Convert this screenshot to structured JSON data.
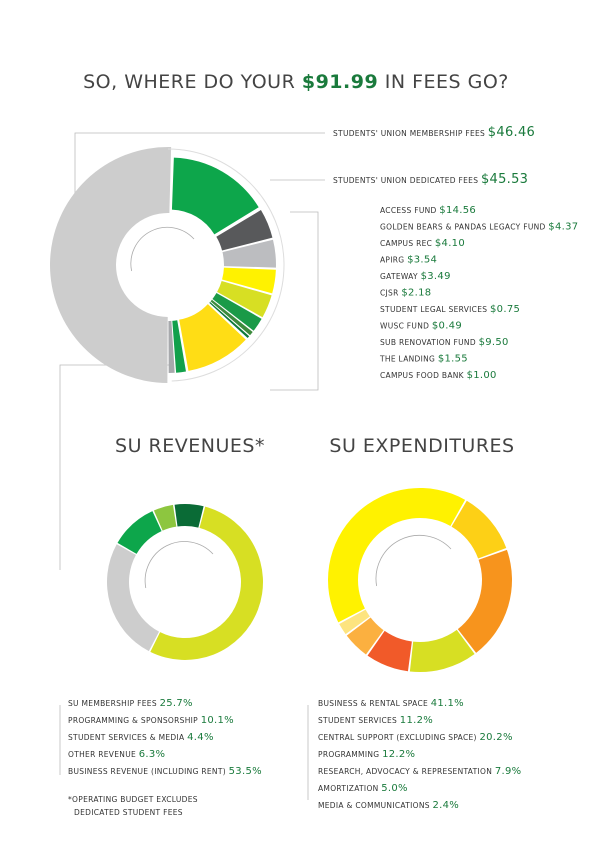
{
  "header": {
    "prefix": "SO, WHERE DO YOUR",
    "amount": "$91.99",
    "suffix": "IN FEES GO?"
  },
  "chart_data": [
    {
      "type": "donut",
      "categories": [
        "STUDENTS' UNION MEMBERSHIP FEES",
        "ACCESS FUND",
        "GOLDEN BEARS & PANDAS LEGACY FUND",
        "CAMPUS REC",
        "APIRG",
        "GATEWAY",
        "CJSR",
        "STUDENT LEGAL SERVICES",
        "WUSC FUND",
        "SUB RENOVATION FUND",
        "THE LANDING",
        "CAMPUS FOOD BANK"
      ],
      "values": [
        46.46,
        14.56,
        4.37,
        4.1,
        3.54,
        3.49,
        2.18,
        0.75,
        0.49,
        9.5,
        1.55,
        1.0
      ],
      "value_labels": [
        "$46.46",
        "$14.56",
        "$4.37",
        "$4.10",
        "$3.54",
        "$3.49",
        "$2.18",
        "$0.75",
        "$0.49",
        "$9.50",
        "$1.55",
        "$1.00"
      ],
      "colors": [
        "#cdcdcd",
        "#0da64b",
        "#58595b",
        "#bcbdc0",
        "#fff200",
        "#d7df23",
        "#1a9a48",
        "#3d8b3d",
        "#0f7a3a",
        "#ffdd15",
        "#12a04b",
        "#a7a9ac"
      ],
      "group": {
        "name": "STUDENTS' UNION DEDICATED FEES",
        "value": 45.53,
        "value_label": "$45.53"
      }
    },
    {
      "type": "donut",
      "title": "SU REVENUES*",
      "categories": [
        "SU MEMBERSHIP FEES",
        "PROGRAMMING & SPONSORSHIP",
        "STUDENT SERVICES & MEDIA",
        "OTHER REVENUE",
        "BUSINESS REVENUE (INCLUDING RENT)"
      ],
      "values": [
        25.7,
        10.1,
        4.4,
        6.3,
        53.5
      ],
      "value_labels": [
        "25.7%",
        "10.1%",
        "4.4%",
        "6.3%",
        "53.5%"
      ],
      "colors": [
        "#cdcdcd",
        "#0da64b",
        "#8dc63f",
        "#0a6b36",
        "#d7df23"
      ],
      "note": "*OPERATING BUDGET EXCLUDES DEDICATED STUDENT FEES"
    },
    {
      "type": "donut",
      "title": "SU EXPENDITURES",
      "categories": [
        "BUSINESS & RENTAL SPACE",
        "STUDENT SERVICES",
        "CENTRAL SUPPORT (EXCLUDING SPACE)",
        "PROGRAMMING",
        "RESEARCH, ADVOCACY & REPRESENTATION",
        "AMORTIZATION",
        "MEDIA & COMMUNICATIONS"
      ],
      "values": [
        41.1,
        11.2,
        20.2,
        12.2,
        7.9,
        5.0,
        2.4
      ],
      "value_labels": [
        "41.1%",
        "11.2%",
        "20.2%",
        "12.2%",
        "7.9%",
        "5.0%",
        "2.4%"
      ],
      "colors": [
        "#fff200",
        "#fdd016",
        "#f7941d",
        "#d7df23",
        "#f15a29",
        "#fbb040",
        "#fde47f"
      ]
    }
  ]
}
